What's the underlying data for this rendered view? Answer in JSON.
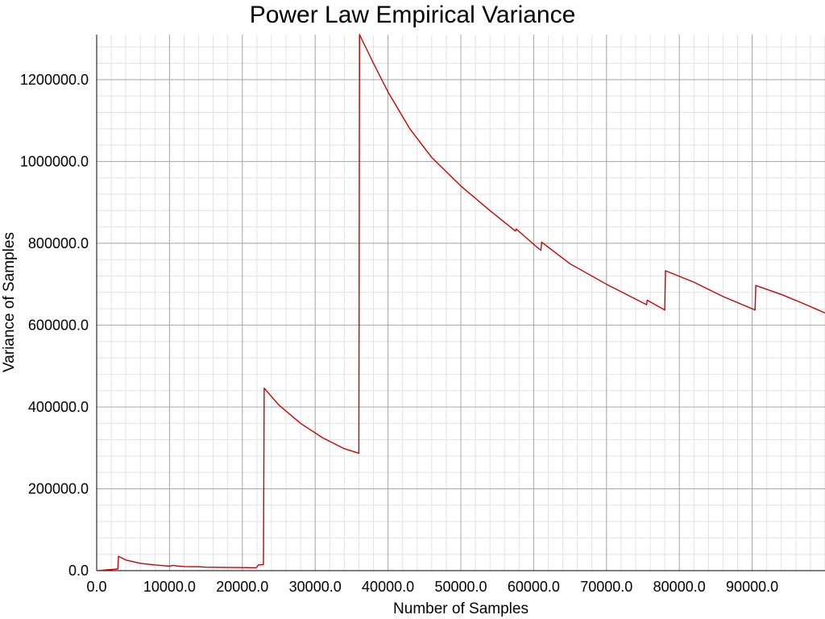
{
  "chart_data": {
    "type": "line",
    "title": "Power Law Empirical Variance",
    "xlabel": "Number of Samples",
    "ylabel": "Variance of Samples",
    "xlim": [
      0,
      100000
    ],
    "ylim": [
      0,
      1310000
    ],
    "x_ticks": [
      0,
      10000,
      20000,
      30000,
      40000,
      50000,
      60000,
      70000,
      80000,
      90000
    ],
    "x_tick_labels": [
      "0.0",
      "10000.0",
      "20000.0",
      "30000.0",
      "40000.0",
      "50000.0",
      "60000.0",
      "70000.0",
      "80000.0",
      "90000.0"
    ],
    "y_ticks": [
      0,
      200000,
      400000,
      600000,
      800000,
      1000000,
      1200000
    ],
    "y_tick_labels": [
      "0.0",
      "200000.0",
      "400000.0",
      "600000.0",
      "800000.0",
      "1000000.0",
      "1200000.0"
    ],
    "grid": true,
    "line_color": "#cc0000",
    "series": [
      {
        "x": [
          0,
          1500,
          2900,
          3000,
          4000,
          6000,
          8000,
          10000,
          10500,
          11000,
          12000,
          14000,
          15000,
          17000,
          20000,
          21900,
          22200,
          22900,
          23000,
          25000,
          28000,
          31000,
          34000,
          36000,
          36100,
          38000,
          40000,
          43000,
          46000,
          50000,
          54000,
          57500,
          57600,
          60500,
          61000,
          61100,
          65000,
          70000,
          75500,
          75600,
          78000,
          78100,
          82000,
          86000,
          90400,
          90500,
          94000,
          97000,
          100000
        ],
        "y": [
          0,
          2000,
          4000,
          35000,
          26000,
          18000,
          14000,
          11000,
          13000,
          11500,
          10000,
          9500,
          8500,
          8000,
          7500,
          7000,
          14000,
          15000,
          446000,
          405000,
          360000,
          325000,
          298000,
          287000,
          1310000,
          1240000,
          1170000,
          1080000,
          1010000,
          940000,
          880000,
          830000,
          835000,
          790000,
          783000,
          803000,
          750000,
          700000,
          650000,
          661000,
          637000,
          733000,
          705000,
          670000,
          637000,
          697000,
          675000,
          653000,
          630000
        ]
      }
    ]
  }
}
